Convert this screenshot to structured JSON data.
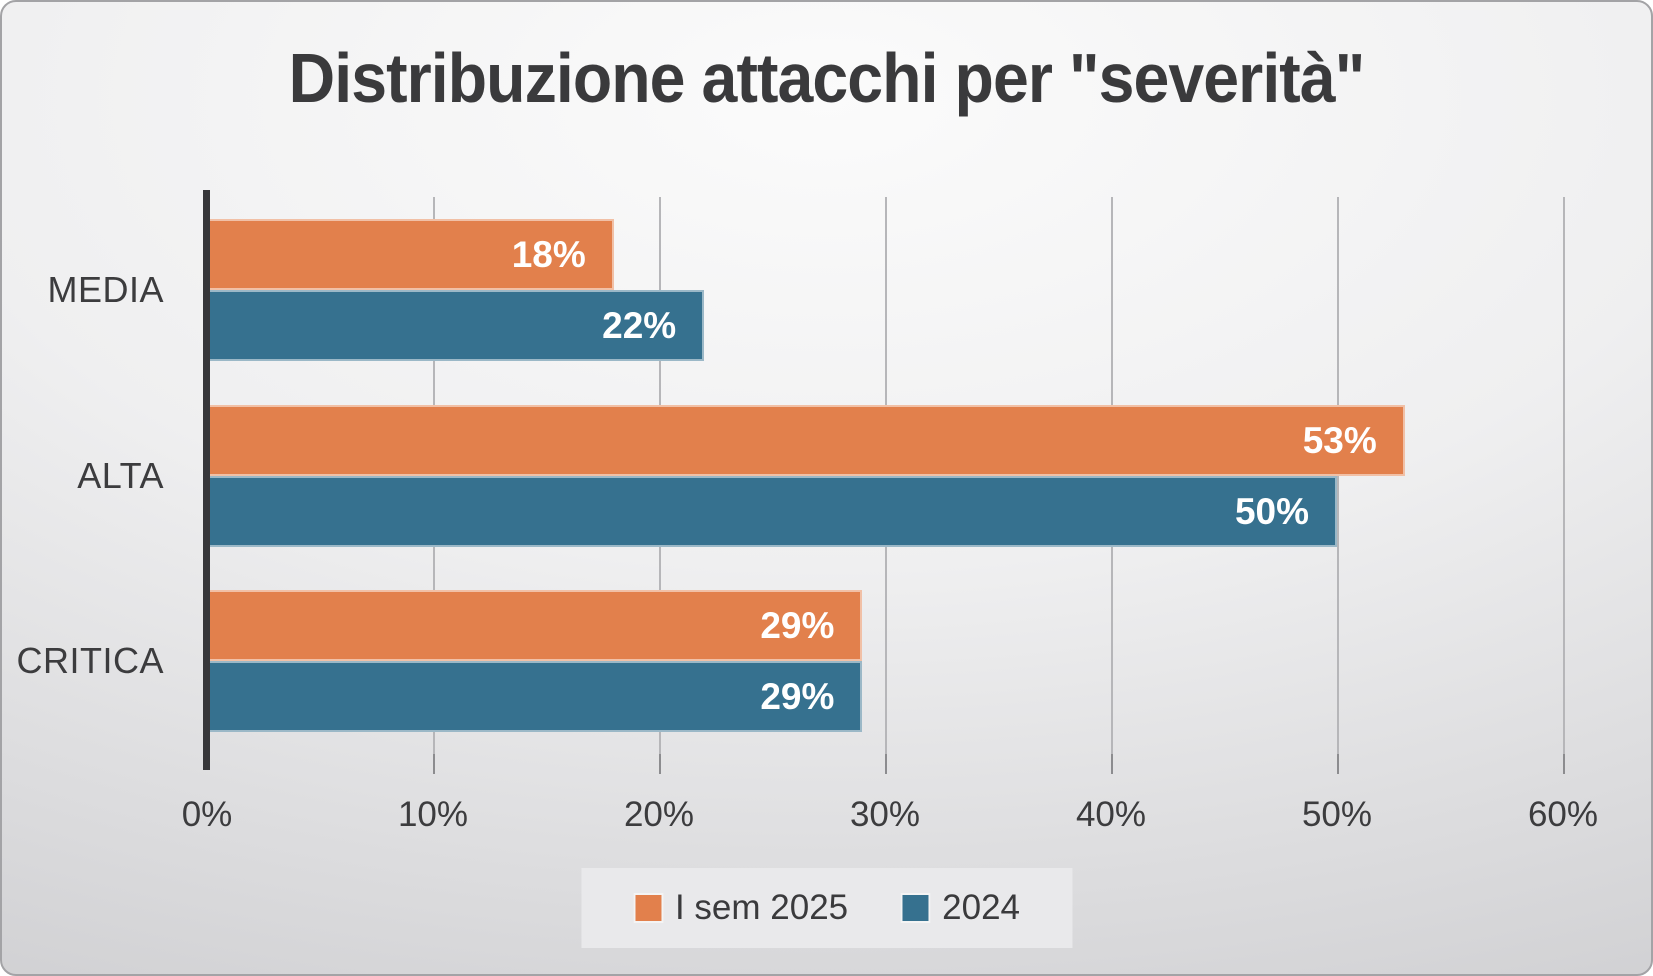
{
  "title": "Distribuzione attacchi per \"severità\"",
  "colors": {
    "series_orange": "#E2804C",
    "series_teal": "#36718F",
    "text_dark": "#3A3A3C",
    "axis_line": "#37373A",
    "gridline": "#B6B6B9",
    "legend_background": "#E9E9EB",
    "value_label": "#FFFFFF"
  },
  "chart_data": {
    "type": "bar",
    "orientation": "horizontal",
    "title": "Distribuzione attacchi per \"severità\"",
    "categories": [
      "MEDIA",
      "ALTA",
      "CRITICA"
    ],
    "series": [
      {
        "name": "I sem 2025",
        "color": "#E2804C",
        "values": [
          18,
          53,
          29
        ]
      },
      {
        "name": "2024",
        "color": "#36718F",
        "values": [
          22,
          50,
          29
        ]
      }
    ],
    "value_suffix": "%",
    "data_labels": {
      "I sem 2025": [
        "18%",
        "53%",
        "29%"
      ],
      "2024": [
        "22%",
        "50%",
        "29%"
      ]
    },
    "x_ticks": [
      "0%",
      "10%",
      "20%",
      "30%",
      "40%",
      "50%",
      "60%"
    ],
    "xlim": [
      0,
      60
    ],
    "grid": "vertical",
    "legend_position": "bottom-center"
  },
  "legend": {
    "items": [
      {
        "label": "I sem 2025",
        "color": "#E2804C"
      },
      {
        "label": "2024",
        "color": "#36718F"
      }
    ]
  }
}
